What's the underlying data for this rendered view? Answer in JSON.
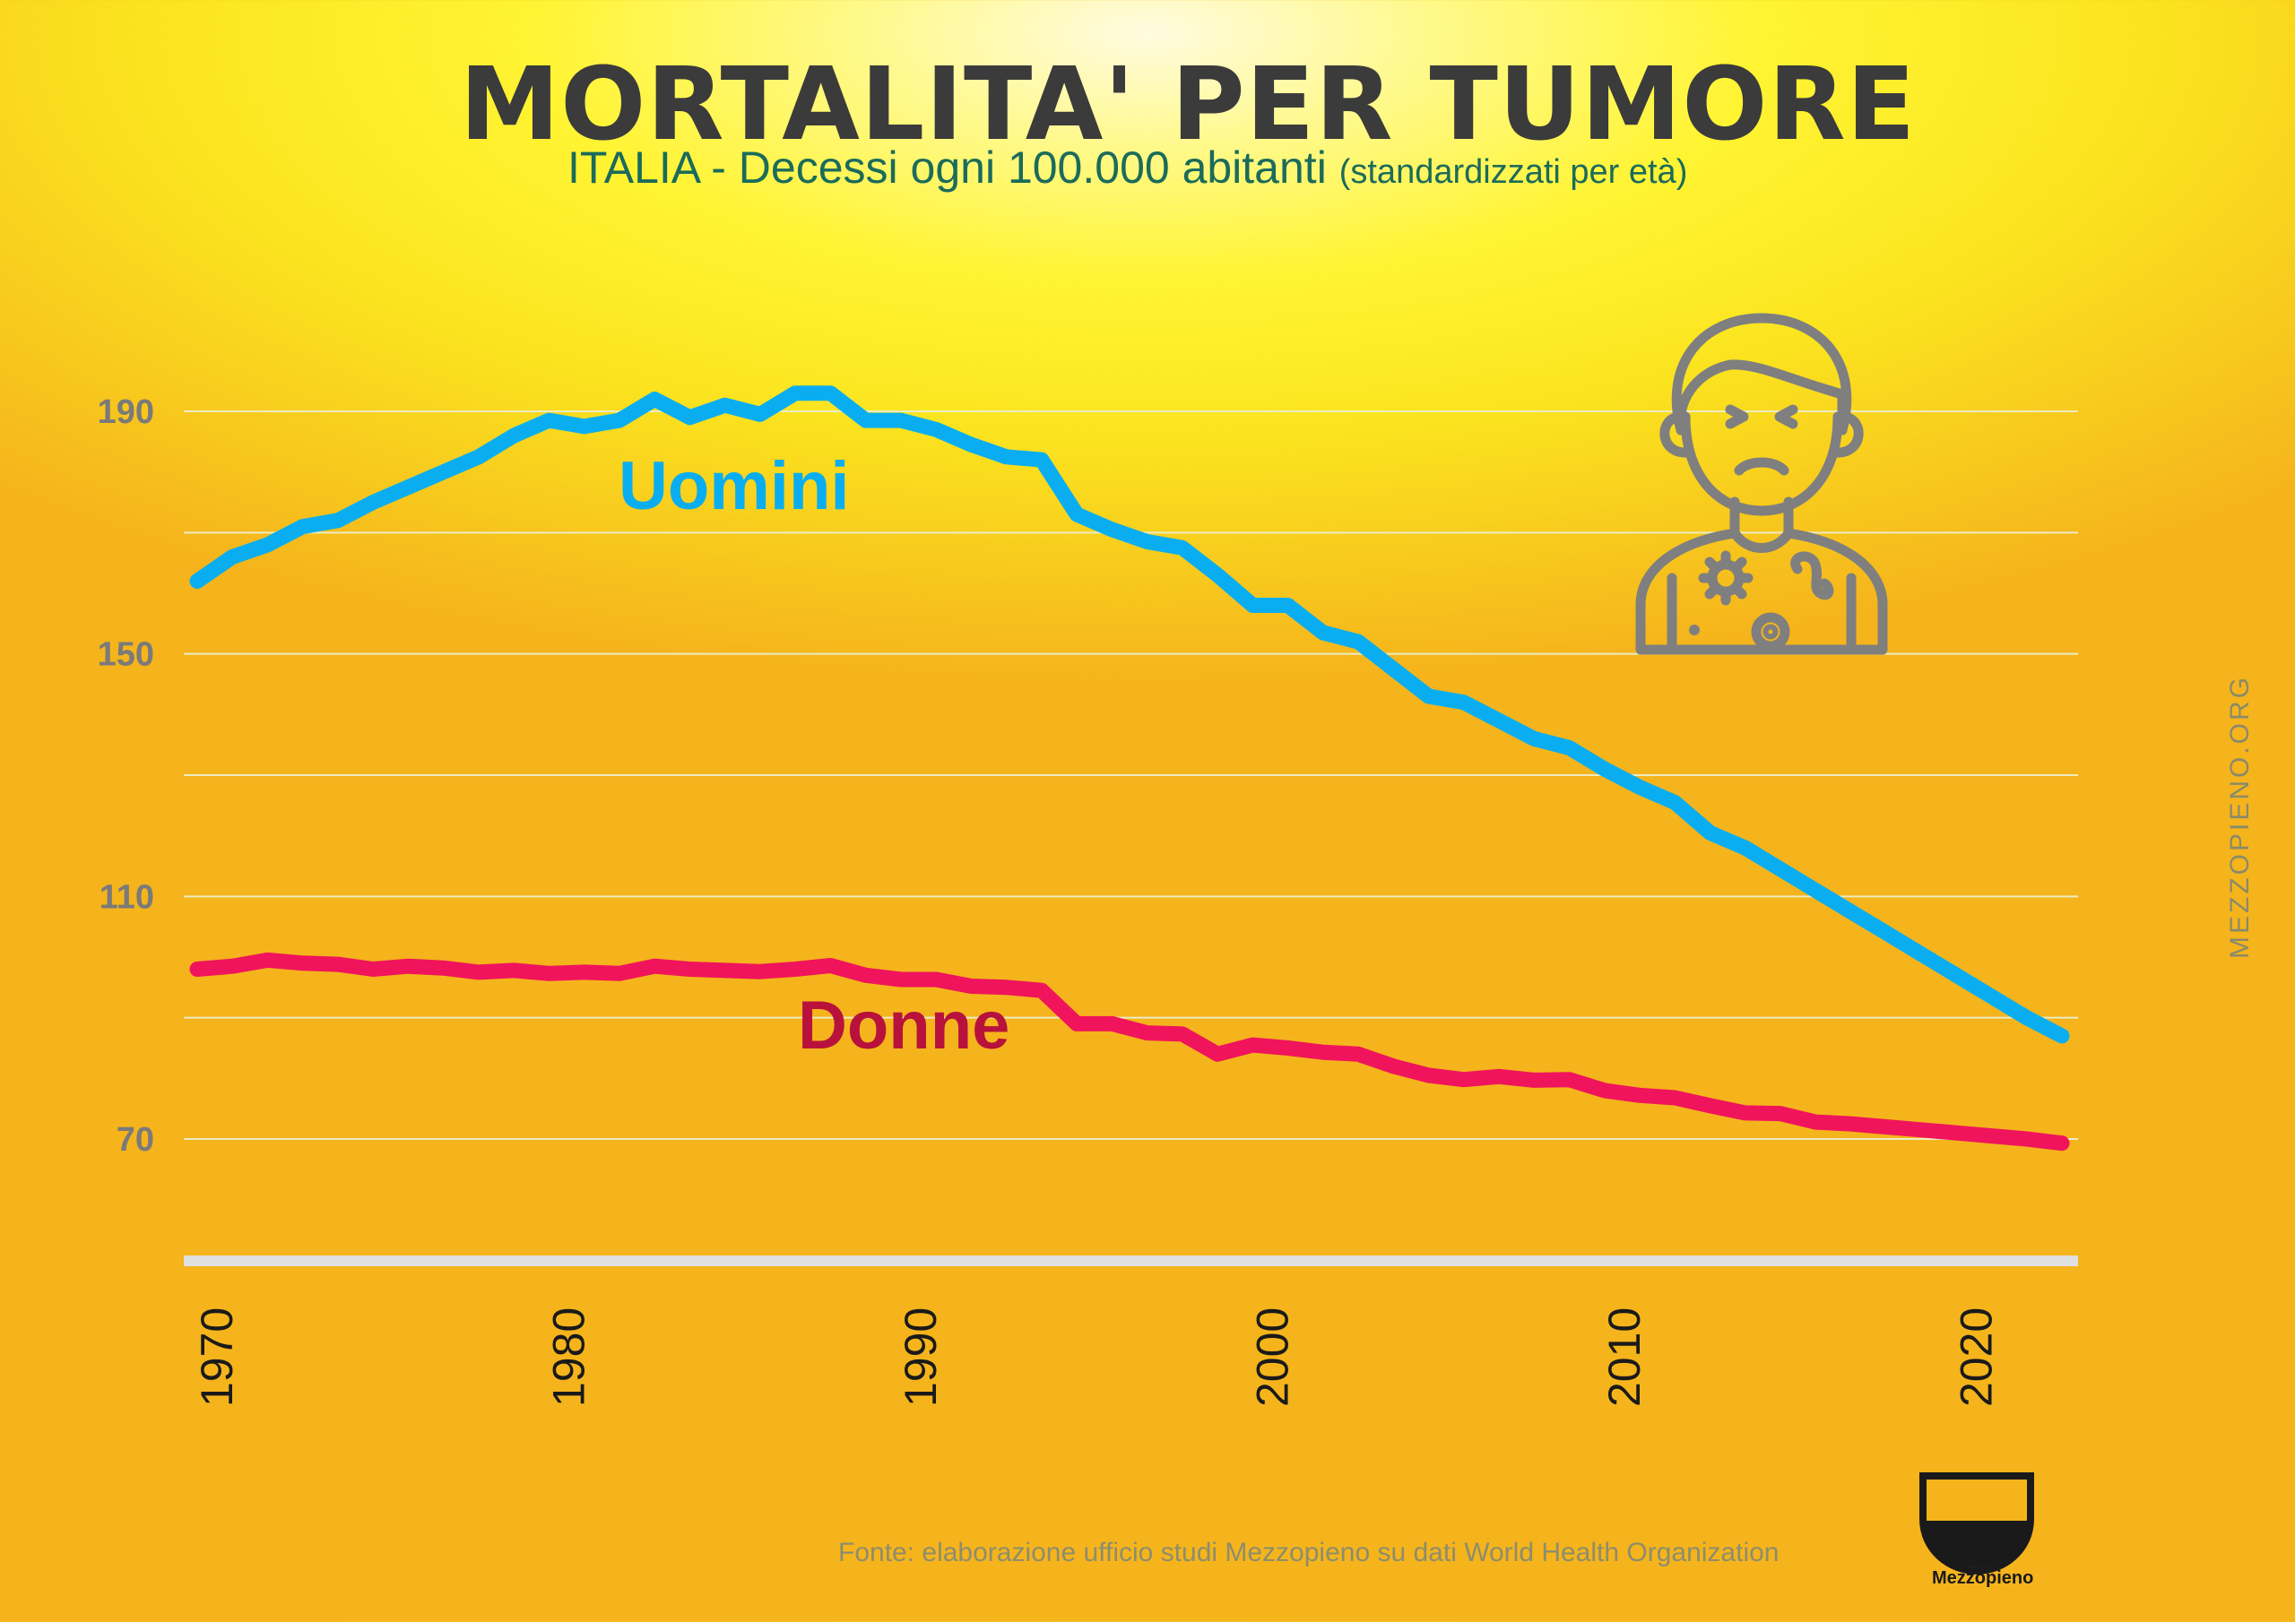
{
  "header": {
    "title": "MORTALITA' PER TUMORE",
    "subtitle_main": "ITALIA - Decessi ogni 100.000 abitanti",
    "subtitle_note": "(standardizzati per età)"
  },
  "watermark": "MEZZOPIENO.ORG",
  "source": "Fonte: elaborazione ufficio studi Mezzopieno su dati World Health Organization",
  "logo": {
    "name": "Mezzopieno",
    "icon": "half-full-glass-icon"
  },
  "illustration": {
    "icon": "sick-person-icon"
  },
  "colors": {
    "men": "#0aaef0",
    "women": "#f0145c",
    "women_label": "#b8123c",
    "tick": "#7a7a7a",
    "grid": "#ececc4",
    "axis": "#e0e0e0"
  },
  "chart_data": {
    "type": "line",
    "title": "MORTALITA' PER TUMORE",
    "subtitle": "ITALIA - Decessi ogni 100.000 abitanti (standardizzati per età)",
    "xlabel": "",
    "ylabel": "",
    "ylim": [
      50,
      200
    ],
    "xlim": [
      1969,
      2022
    ],
    "yticks": [
      70,
      110,
      150,
      190
    ],
    "xticks": [
      1970,
      1980,
      1990,
      2000,
      2010,
      2020
    ],
    "grid": true,
    "x": [
      1969,
      1970,
      1971,
      1972,
      1973,
      1974,
      1975,
      1976,
      1977,
      1978,
      1979,
      1980,
      1981,
      1982,
      1983,
      1984,
      1985,
      1986,
      1987,
      1988,
      1989,
      1990,
      1991,
      1992,
      1993,
      1994,
      1995,
      1996,
      1997,
      1998,
      1999,
      2000,
      2001,
      2002,
      2003,
      2004,
      2005,
      2006,
      2007,
      2008,
      2009,
      2010,
      2011,
      2012,
      2013,
      2014,
      2015,
      2016,
      2017,
      2018,
      2019,
      2020,
      2021,
      2022
    ],
    "series": [
      {
        "name": "Uomini",
        "values": [
          162,
          166,
          168,
          171,
          172,
          175,
          177.5,
          180,
          182.5,
          186,
          188.5,
          187.5,
          188.5,
          192,
          189,
          191,
          189.5,
          193,
          193,
          188.5,
          188.5,
          187,
          184.5,
          182.5,
          182,
          173,
          170.5,
          168.5,
          167.5,
          163,
          158,
          158,
          153.5,
          152,
          147.5,
          143,
          142,
          139,
          136,
          134.5,
          131,
          128,
          125.5,
          120.5,
          118,
          114.5,
          111,
          107.5,
          104,
          100.5,
          97,
          93.5,
          90,
          87
        ]
      },
      {
        "name": "Donne",
        "values": [
          98,
          98.5,
          99.5,
          99,
          98.8,
          98,
          98.5,
          98.2,
          97.5,
          97.8,
          97.3,
          97.5,
          97.3,
          98.5,
          98,
          97.8,
          97.6,
          98,
          98.6,
          97,
          96.3,
          96.3,
          95.2,
          95,
          94.5,
          89,
          89,
          87.5,
          87.3,
          84,
          85.5,
          85,
          84.3,
          84,
          82,
          80.5,
          79.8,
          80.3,
          79.7,
          79.8,
          78,
          77.2,
          76.8,
          75.5,
          74.3,
          74.2,
          72.8,
          72.5,
          72,
          71.5,
          71,
          70.5,
          70,
          69.3
        ]
      }
    ]
  }
}
